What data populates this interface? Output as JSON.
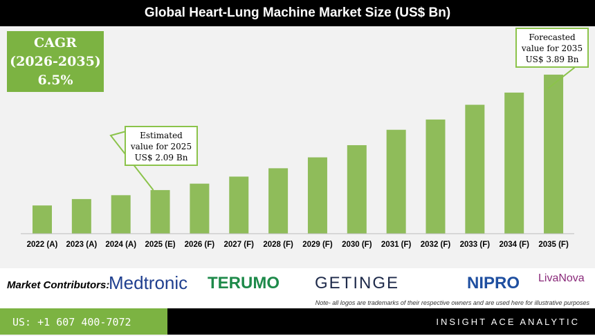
{
  "chart_data": {
    "type": "bar",
    "title": "Global Heart-Lung Machine Market Size (US$ Bn)",
    "categories": [
      "2022 (A)",
      "2023 (A)",
      "2024 (A)",
      "2025 (E)",
      "2026 (F)",
      "2027 (F)",
      "2028 (F)",
      "2029 (F)",
      "2030 (F)",
      "2031 (F)",
      "2032 (F)",
      "2033 (F)",
      "2034 (F)",
      "2035 (F)"
    ],
    "values": [
      1.85,
      1.95,
      2.01,
      2.09,
      2.19,
      2.3,
      2.43,
      2.6,
      2.79,
      3.03,
      3.19,
      3.42,
      3.61,
      3.89
    ],
    "bar_color": "#8fbc5a",
    "grid": false,
    "annotations": {
      "cagr_label": "CAGR",
      "cagr_period": "(2026-2035)",
      "cagr_value": "6.5%",
      "est_line1": "Estimated",
      "est_line2": "value for 2025",
      "est_line3": "US$ 2.09 Bn",
      "fc_line1": "Forecasted",
      "fc_line2": "value for 2035",
      "fc_line3": "US$ 3.89 Bn"
    }
  },
  "contributors": {
    "label": "Market Contributors:",
    "logos": [
      "Medtronic",
      "TERUMO",
      "GETINGE",
      "NIPRO",
      "LivaNova"
    ],
    "note": "Note- all logos are trademarks of their respective owners and are used here for illustrative purposes"
  },
  "footer": {
    "phone": "US: +1 607 400-7072",
    "brand": "INSIGHT ACE ANALYTIC"
  }
}
